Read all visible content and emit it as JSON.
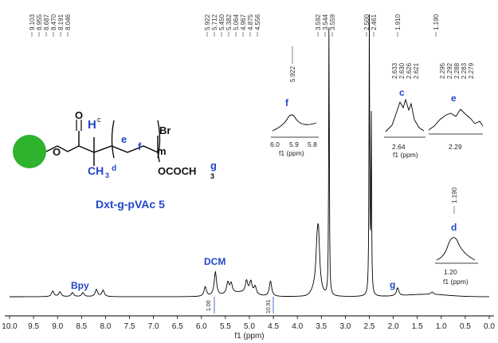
{
  "chart_data": {
    "type": "line",
    "title": "",
    "xlabel": "f1 (ppm)",
    "ylabel": "",
    "xlim": [
      10.0,
      0.0
    ],
    "x_reversed": true,
    "x_ticks": [
      "10.0",
      "9.5",
      "9.0",
      "8.5",
      "8.0",
      "7.5",
      "7.0",
      "6.5",
      "6.0",
      "5.5",
      "5.0",
      "4.5",
      "4.0",
      "3.5",
      "3.0",
      "2.5",
      "2.0",
      "1.5",
      "1.0",
      "0.5",
      "0.0"
    ],
    "peak_groups": [
      [
        "9.103",
        "8.955",
        "8.687",
        "8.470",
        "8.191",
        "8.046"
      ],
      [
        "5.922",
        "5.712",
        "5.450",
        "5.382",
        "5.064",
        "4.967",
        "4.875",
        "4.556"
      ],
      [
        "3.592",
        "3.544",
        "3.559"
      ],
      [
        "2.500",
        "2.461"
      ],
      [
        "1.910"
      ],
      [
        "1.190"
      ]
    ],
    "integrals": [
      "1.00",
      "10.91"
    ],
    "assignments": [
      "Bpy",
      "DCM",
      "g"
    ],
    "peaks": [
      {
        "ppm": 9.1,
        "h": 7
      },
      {
        "ppm": 8.95,
        "h": 6
      },
      {
        "ppm": 8.69,
        "h": 5
      },
      {
        "ppm": 8.47,
        "h": 5
      },
      {
        "ppm": 8.19,
        "h": 9
      },
      {
        "ppm": 8.05,
        "h": 8
      },
      {
        "ppm": 5.92,
        "h": 12
      },
      {
        "ppm": 5.71,
        "h": 30
      },
      {
        "ppm": 5.45,
        "h": 14
      },
      {
        "ppm": 5.38,
        "h": 12
      },
      {
        "ppm": 5.06,
        "h": 15
      },
      {
        "ppm": 4.97,
        "h": 15
      },
      {
        "ppm": 4.88,
        "h": 10
      },
      {
        "ppm": 4.56,
        "h": 19
      },
      {
        "ppm": 3.59,
        "h": 40
      },
      {
        "ppm": 3.56,
        "h": 60
      },
      {
        "ppm": 3.34,
        "h": 350
      },
      {
        "ppm": 2.5,
        "h": 345
      },
      {
        "ppm": 2.46,
        "h": 230
      },
      {
        "ppm": 1.91,
        "h": 10
      },
      {
        "ppm": 1.19,
        "h": 3
      }
    ],
    "insets": [
      {
        "label": "f",
        "peak_label": "5.922",
        "x_ticks": [
          "6.0",
          "5.9",
          "5.8"
        ],
        "xlabel": "f1 (ppm)"
      },
      {
        "label": "c",
        "peak_labels": [
          "2.633",
          "2.630",
          "2.626",
          "2.621"
        ],
        "x_ticks": [
          "2.64"
        ],
        "xlabel": "f1 (ppm)"
      },
      {
        "label": "e",
        "peak_labels": [
          "2.295",
          "2.292",
          "2.288",
          "2.283",
          "2.279"
        ],
        "x_ticks": [
          "2.29"
        ],
        "xlabel": ""
      },
      {
        "label": "d",
        "peak_label": "1.190",
        "x_ticks": [
          "1.20"
        ],
        "xlabel": "f1 (ppm)"
      }
    ]
  },
  "structure": {
    "compound_name": "Dxt-g-pVAc 5",
    "labels": {
      "c": "c",
      "d": "d",
      "e": "e",
      "f": "f",
      "g": "g",
      "m": "m",
      "br": "Br",
      "o1": "O",
      "o2": "O",
      "h": "H",
      "ch3": "CH",
      "sub3": "3",
      "oco": "OCOCH",
      "sub3b": "3"
    }
  },
  "colors": {
    "accent": "#2346c8",
    "sphere": "#2db32d",
    "trace": "#000000"
  }
}
